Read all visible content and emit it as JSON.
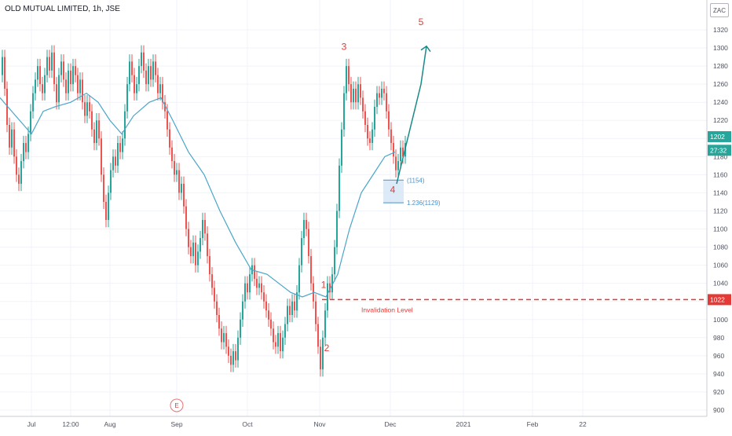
{
  "header": {
    "symbol_title": "OLD MUTUAL LIMITED, 1h, JSE",
    "currency": "ZAC"
  },
  "chart_data": {
    "type": "line",
    "title": "OLD MUTUAL LIMITED, 1h, JSE",
    "ylim": [
      890,
      1340
    ],
    "y_ticks": [
      900,
      920,
      940,
      960,
      980,
      1000,
      1020,
      1040,
      1060,
      1080,
      1100,
      1120,
      1140,
      1160,
      1180,
      1200,
      1220,
      1240,
      1260,
      1280,
      1300,
      1320
    ],
    "x_ticks": [
      "Jul",
      "12:00",
      "Aug",
      "Sep",
      "Oct",
      "Nov",
      "Dec",
      "2021",
      "Feb",
      "22"
    ],
    "grid": true,
    "series": [
      {
        "type": "candlestick-path",
        "color_up": "#26a69a",
        "color_down": "#ef5350",
        "points": [
          [
            0,
            1270
          ],
          [
            3,
            1290
          ],
          [
            6,
            1255
          ],
          [
            9,
            1215
          ],
          [
            12,
            1190
          ],
          [
            15,
            1210
          ],
          [
            18,
            1180
          ],
          [
            21,
            1160
          ],
          [
            24,
            1150
          ],
          [
            27,
            1175
          ],
          [
            30,
            1195
          ],
          [
            33,
            1185
          ],
          [
            36,
            1205
          ],
          [
            39,
            1230
          ],
          [
            42,
            1250
          ],
          [
            45,
            1265
          ],
          [
            48,
            1280
          ],
          [
            51,
            1260
          ],
          [
            54,
            1250
          ],
          [
            57,
            1270
          ],
          [
            60,
            1290
          ],
          [
            63,
            1275
          ],
          [
            66,
            1295
          ],
          [
            69,
            1260
          ],
          [
            72,
            1240
          ],
          [
            75,
            1270
          ],
          [
            78,
            1285
          ],
          [
            81,
            1265
          ],
          [
            84,
            1250
          ],
          [
            87,
            1275
          ],
          [
            90,
            1260
          ],
          [
            93,
            1280
          ],
          [
            96,
            1270
          ],
          [
            99,
            1250
          ],
          [
            102,
            1265
          ],
          [
            105,
            1240
          ],
          [
            108,
            1225
          ],
          [
            111,
            1240
          ],
          [
            114,
            1230
          ],
          [
            117,
            1210
          ],
          [
            120,
            1195
          ],
          [
            123,
            1220
          ],
          [
            126,
            1200
          ],
          [
            129,
            1160
          ],
          [
            132,
            1130
          ],
          [
            135,
            1110
          ],
          [
            138,
            1140
          ],
          [
            141,
            1165
          ],
          [
            144,
            1180
          ],
          [
            147,
            1170
          ],
          [
            150,
            1195
          ],
          [
            153,
            1185
          ],
          [
            156,
            1200
          ],
          [
            159,
            1230
          ],
          [
            162,
            1260
          ],
          [
            165,
            1285
          ],
          [
            168,
            1270
          ],
          [
            171,
            1250
          ],
          [
            174,
            1260
          ],
          [
            177,
            1280
          ],
          [
            180,
            1295
          ],
          [
            183,
            1275
          ],
          [
            186,
            1260
          ],
          [
            189,
            1280
          ],
          [
            192,
            1265
          ],
          [
            195,
            1285
          ],
          [
            198,
            1270
          ],
          [
            201,
            1250
          ],
          [
            204,
            1260
          ],
          [
            207,
            1240
          ],
          [
            210,
            1230
          ],
          [
            213,
            1210
          ],
          [
            216,
            1190
          ],
          [
            219,
            1175
          ],
          [
            222,
            1160
          ],
          [
            225,
            1165
          ],
          [
            228,
            1140
          ],
          [
            231,
            1150
          ],
          [
            234,
            1125
          ],
          [
            237,
            1100
          ],
          [
            240,
            1080
          ],
          [
            243,
            1070
          ],
          [
            246,
            1085
          ],
          [
            249,
            1060
          ],
          [
            252,
            1075
          ],
          [
            255,
            1090
          ],
          [
            258,
            1110
          ],
          [
            261,
            1095
          ],
          [
            264,
            1070
          ],
          [
            267,
            1050
          ],
          [
            270,
            1035
          ],
          [
            273,
            1020
          ],
          [
            276,
            1005
          ],
          [
            279,
            990
          ],
          [
            282,
            975
          ],
          [
            285,
            985
          ],
          [
            288,
            970
          ],
          [
            291,
            960
          ],
          [
            294,
            950
          ],
          [
            297,
            965
          ],
          [
            300,
            955
          ],
          [
            303,
            980
          ],
          [
            306,
            1000
          ],
          [
            309,
            1020
          ],
          [
            312,
            1040
          ],
          [
            315,
            1030
          ],
          [
            318,
            1050
          ],
          [
            321,
            1060
          ],
          [
            324,
            1045
          ],
          [
            327,
            1035
          ],
          [
            330,
            1040
          ],
          [
            333,
            1030
          ],
          [
            336,
            1020
          ],
          [
            339,
            1010
          ],
          [
            342,
            1000
          ],
          [
            345,
            990
          ],
          [
            348,
            975
          ],
          [
            351,
            970
          ],
          [
            354,
            985
          ],
          [
            357,
            965
          ],
          [
            360,
            980
          ],
          [
            363,
            995
          ],
          [
            366,
            1015
          ],
          [
            369,
            1005
          ],
          [
            372,
            1020
          ],
          [
            375,
            1010
          ],
          [
            378,
            1030
          ],
          [
            381,
            1060
          ],
          [
            384,
            1090
          ],
          [
            387,
            1110
          ],
          [
            390,
            1100
          ],
          [
            393,
            1070
          ],
          [
            396,
            1040
          ],
          [
            399,
            1020
          ],
          [
            402,
            995
          ],
          [
            405,
            970
          ],
          [
            408,
            945
          ],
          [
            411,
            980
          ],
          [
            414,
            1010
          ],
          [
            417,
            1040
          ],
          [
            420,
            1030
          ],
          [
            423,
            1050
          ],
          [
            426,
            1080
          ],
          [
            429,
            1120
          ],
          [
            432,
            1170
          ],
          [
            435,
            1210
          ],
          [
            438,
            1250
          ],
          [
            441,
            1280
          ],
          [
            444,
            1260
          ],
          [
            447,
            1240
          ],
          [
            450,
            1255
          ],
          [
            453,
            1240
          ],
          [
            456,
            1260
          ],
          [
            459,
            1245
          ],
          [
            462,
            1230
          ],
          [
            465,
            1215
          ],
          [
            468,
            1200
          ],
          [
            471,
            1195
          ],
          [
            474,
            1210
          ],
          [
            477,
            1235
          ],
          [
            480,
            1250
          ],
          [
            483,
            1245
          ],
          [
            486,
            1255
          ],
          [
            489,
            1250
          ],
          [
            492,
            1230
          ],
          [
            495,
            1210
          ],
          [
            498,
            1195
          ],
          [
            501,
            1180
          ],
          [
            504,
            1165
          ],
          [
            507,
            1175
          ],
          [
            510,
            1190
          ],
          [
            513,
            1180
          ],
          [
            516,
            1195
          ]
        ]
      },
      {
        "type": "line",
        "name": "",
        "color": "#4aa5c9",
        "points": [
          [
            0,
            1245
          ],
          [
            15,
            1230
          ],
          [
            30,
            1215
          ],
          [
            40,
            1205
          ],
          [
            55,
            1230
          ],
          [
            70,
            1235
          ],
          [
            90,
            1240
          ],
          [
            110,
            1250
          ],
          [
            125,
            1240
          ],
          [
            140,
            1220
          ],
          [
            155,
            1205
          ],
          [
            170,
            1225
          ],
          [
            190,
            1240
          ],
          [
            205,
            1245
          ],
          [
            220,
            1220
          ],
          [
            240,
            1185
          ],
          [
            260,
            1160
          ],
          [
            280,
            1120
          ],
          [
            300,
            1085
          ],
          [
            320,
            1055
          ],
          [
            340,
            1050
          ],
          [
            355,
            1040
          ],
          [
            370,
            1030
          ],
          [
            385,
            1025
          ],
          [
            400,
            1030
          ],
          [
            415,
            1025
          ],
          [
            430,
            1050
          ],
          [
            445,
            1100
          ],
          [
            460,
            1140
          ],
          [
            475,
            1160
          ],
          [
            490,
            1180
          ],
          [
            503,
            1185
          ]
        ]
      }
    ],
    "annotations": {
      "wave_labels": [
        {
          "text": "1",
          "x": 412,
          "y": 1035
        },
        {
          "text": "2",
          "x": 416,
          "y": 965
        },
        {
          "text": "3",
          "x": 438,
          "y": 1298
        },
        {
          "text": "4",
          "x": 500,
          "y": 1140
        },
        {
          "text": "5",
          "x": 536,
          "y": 1325
        }
      ],
      "projection_arrow": {
        "from": [
          505,
          1150
        ],
        "via": [
          536,
          1260
        ],
        "to": [
          543,
          1302
        ],
        "color": "#1a8a86"
      },
      "fib_box": {
        "x1": 488,
        "x2": 514,
        "y1": 1154,
        "y2": 1129,
        "color": "#4a90c8"
      },
      "fib_labels": [
        {
          "text": "(1154)",
          "y": 1154
        },
        {
          "text": "1.236(1129)",
          "y": 1129
        }
      ],
      "invalidation": {
        "label": "Invalidation Level",
        "value": 1022,
        "color": "#e53935"
      },
      "event_marker": {
        "text": "E",
        "x": 225
      }
    },
    "price_badges": [
      {
        "text": "1202",
        "value": 1202,
        "color": "#26a69a"
      },
      {
        "text": "27:32",
        "value": 1187,
        "color": "#26a69a"
      },
      {
        "text": "1022",
        "value": 1022,
        "color": "#e53935"
      }
    ]
  }
}
